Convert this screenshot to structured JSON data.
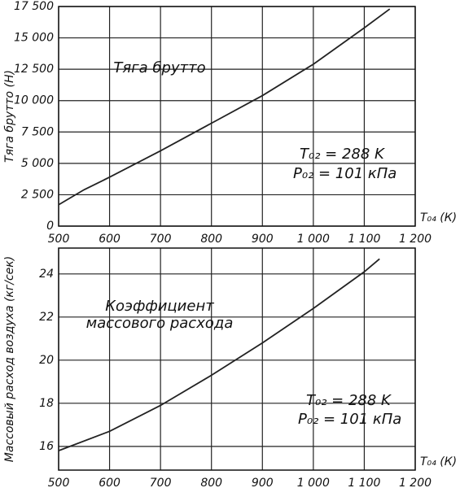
{
  "chart_data": [
    {
      "type": "line",
      "y_label": "Тяга брутто (Н)",
      "x_label": "T₀₄ (К)",
      "annotations": [
        "Тяга брутто",
        "T₀₂ = 288 K",
        "P₀₂ = 101 кПа"
      ],
      "x": [
        500,
        550,
        600,
        700,
        800,
        900,
        1000,
        1100,
        1150
      ],
      "values": [
        1700,
        2900,
        3900,
        6000,
        8200,
        10400,
        12900,
        15800,
        17300
      ],
      "color": "#222",
      "xlim": [
        500,
        1200
      ],
      "xticks": [
        500,
        600,
        700,
        800,
        900,
        {
          "value": 1000,
          "label": "1 000"
        },
        {
          "value": 1100,
          "label": "1 100"
        },
        {
          "value": 1200,
          "label": "1 200"
        }
      ],
      "ylim": [
        0,
        17500
      ],
      "yticks": [
        0,
        {
          "value": 2500,
          "label": "2 500"
        },
        {
          "value": 5000,
          "label": "5 000"
        },
        {
          "value": 7500,
          "label": "7 500"
        },
        {
          "value": 10000,
          "label": "10 000"
        },
        {
          "value": 12500,
          "label": "12 500"
        },
        {
          "value": 15000,
          "label": "15 000"
        },
        {
          "value": 17500,
          "label": "17 500"
        }
      ],
      "grid": true
    },
    {
      "type": "line",
      "y_label": "Массовый расход воздуха (кг/сек)",
      "x_label": "T₀₄ (К)",
      "annotations": [
        "Коэффициент",
        "массового расхода",
        "T₀₂ = 288 K",
        "P₀₂ = 101 кПа"
      ],
      "x": [
        500,
        600,
        700,
        800,
        900,
        1000,
        1100,
        1130
      ],
      "values": [
        15.8,
        16.7,
        17.9,
        19.3,
        20.8,
        22.4,
        24.1,
        24.7
      ],
      "color": "#222",
      "xlim": [
        500,
        1200
      ],
      "xticks": [
        500,
        600,
        700,
        800,
        900,
        {
          "value": 1000,
          "label": "1 000"
        },
        {
          "value": 1100,
          "label": "1 100"
        },
        {
          "value": 1200,
          "label": "1 200"
        }
      ],
      "ylim": [
        14.9,
        25.2
      ],
      "yticks": [
        16,
        18,
        20,
        22,
        24
      ],
      "grid": true
    }
  ]
}
